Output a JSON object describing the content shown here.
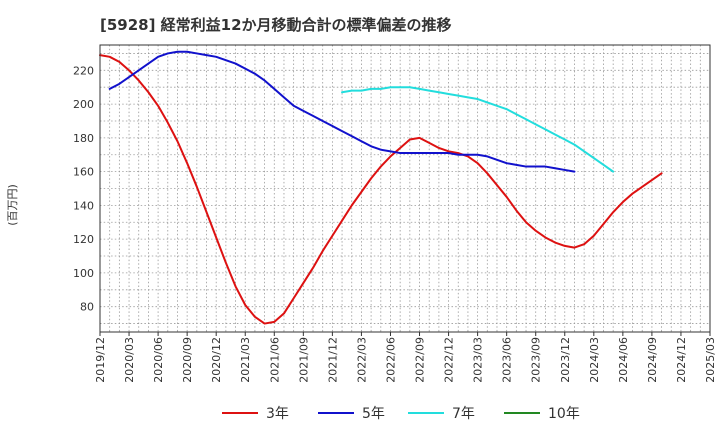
{
  "chart_data": {
    "type": "line",
    "title": "[5928]  経常利益12か月移動合計の標準偏差の推移",
    "ylabel": "(百万円)",
    "xlabel": "",
    "ylim": [
      65,
      235
    ],
    "yticks": [
      80,
      100,
      120,
      140,
      160,
      180,
      200,
      220
    ],
    "xlim": [
      "2019-12",
      "2025-03"
    ],
    "xticks": [
      "2019/12",
      "2020/03",
      "2020/06",
      "2020/09",
      "2020/12",
      "2021/03",
      "2021/06",
      "2021/09",
      "2021/12",
      "2022/03",
      "2022/06",
      "2022/09",
      "2022/12",
      "2023/03",
      "2023/06",
      "2023/09",
      "2023/12",
      "2024/03",
      "2024/06",
      "2024/09",
      "2024/12",
      "2025/03"
    ],
    "grid": true,
    "legend_position": "bottom",
    "series": [
      {
        "name": "3年",
        "color": "#dd1111",
        "points": [
          [
            "2019-12",
            229
          ],
          [
            "2020-01",
            228
          ],
          [
            "2020-02",
            225
          ],
          [
            "2020-03",
            220
          ],
          [
            "2020-04",
            214
          ],
          [
            "2020-05",
            207
          ],
          [
            "2020-06",
            199
          ],
          [
            "2020-07",
            189
          ],
          [
            "2020-08",
            178
          ],
          [
            "2020-09",
            165
          ],
          [
            "2020-10",
            151
          ],
          [
            "2020-11",
            136
          ],
          [
            "2020-12",
            121
          ],
          [
            "2021-01",
            106
          ],
          [
            "2021-02",
            92
          ],
          [
            "2021-03",
            81
          ],
          [
            "2021-04",
            74
          ],
          [
            "2021-05",
            70
          ],
          [
            "2021-06",
            71
          ],
          [
            "2021-07",
            76
          ],
          [
            "2021-08",
            85
          ],
          [
            "2021-09",
            94
          ],
          [
            "2021-10",
            103
          ],
          [
            "2021-11",
            113
          ],
          [
            "2021-12",
            122
          ],
          [
            "2022-01",
            131
          ],
          [
            "2022-02",
            140
          ],
          [
            "2022-03",
            148
          ],
          [
            "2022-04",
            156
          ],
          [
            "2022-05",
            163
          ],
          [
            "2022-06",
            169
          ],
          [
            "2022-07",
            174
          ],
          [
            "2022-08",
            179
          ],
          [
            "2022-09",
            180
          ],
          [
            "2022-10",
            177
          ],
          [
            "2022-11",
            174
          ],
          [
            "2022-12",
            172
          ],
          [
            "2023-01",
            171
          ],
          [
            "2023-02",
            169
          ],
          [
            "2023-03",
            165
          ],
          [
            "2023-04",
            159
          ],
          [
            "2023-05",
            152
          ],
          [
            "2023-06",
            145
          ],
          [
            "2023-07",
            137
          ],
          [
            "2023-08",
            130
          ],
          [
            "2023-09",
            125
          ],
          [
            "2023-10",
            121
          ],
          [
            "2023-11",
            118
          ],
          [
            "2023-12",
            116
          ],
          [
            "2024-01",
            115
          ],
          [
            "2024-02",
            117
          ],
          [
            "2024-03",
            122
          ],
          [
            "2024-04",
            129
          ],
          [
            "2024-05",
            136
          ],
          [
            "2024-06",
            142
          ],
          [
            "2024-07",
            147
          ],
          [
            "2024-08",
            151
          ],
          [
            "2024-09",
            155
          ],
          [
            "2024-10",
            159
          ]
        ]
      },
      {
        "name": "5年",
        "color": "#1111cc",
        "points": [
          [
            "2020-01",
            209
          ],
          [
            "2020-02",
            212
          ],
          [
            "2020-03",
            216
          ],
          [
            "2020-04",
            220
          ],
          [
            "2020-05",
            224
          ],
          [
            "2020-06",
            228
          ],
          [
            "2020-07",
            230
          ],
          [
            "2020-08",
            231
          ],
          [
            "2020-09",
            231
          ],
          [
            "2020-10",
            230
          ],
          [
            "2020-11",
            229
          ],
          [
            "2020-12",
            228
          ],
          [
            "2021-01",
            226
          ],
          [
            "2021-02",
            224
          ],
          [
            "2021-03",
            221
          ],
          [
            "2021-04",
            218
          ],
          [
            "2021-05",
            214
          ],
          [
            "2021-06",
            209
          ],
          [
            "2021-07",
            204
          ],
          [
            "2021-08",
            199
          ],
          [
            "2021-09",
            196
          ],
          [
            "2021-10",
            193
          ],
          [
            "2021-11",
            190
          ],
          [
            "2021-12",
            187
          ],
          [
            "2022-01",
            184
          ],
          [
            "2022-02",
            181
          ],
          [
            "2022-03",
            178
          ],
          [
            "2022-04",
            175
          ],
          [
            "2022-05",
            173
          ],
          [
            "2022-06",
            172
          ],
          [
            "2022-07",
            171
          ],
          [
            "2022-08",
            171
          ],
          [
            "2022-09",
            171
          ],
          [
            "2022-10",
            171
          ],
          [
            "2022-11",
            171
          ],
          [
            "2022-12",
            171
          ],
          [
            "2023-01",
            170
          ],
          [
            "2023-02",
            170
          ],
          [
            "2023-03",
            170
          ],
          [
            "2023-04",
            169
          ],
          [
            "2023-05",
            167
          ],
          [
            "2023-06",
            165
          ],
          [
            "2023-07",
            164
          ],
          [
            "2023-08",
            163
          ],
          [
            "2023-09",
            163
          ],
          [
            "2023-10",
            163
          ],
          [
            "2023-11",
            162
          ],
          [
            "2023-12",
            161
          ],
          [
            "2024-01",
            160
          ]
        ]
      },
      {
        "name": "7年",
        "color": "#22dddd",
        "points": [
          [
            "2022-01",
            207
          ],
          [
            "2022-02",
            208
          ],
          [
            "2022-03",
            208
          ],
          [
            "2022-04",
            209
          ],
          [
            "2022-05",
            209
          ],
          [
            "2022-06",
            210
          ],
          [
            "2022-07",
            210
          ],
          [
            "2022-08",
            210
          ],
          [
            "2022-09",
            209
          ],
          [
            "2022-10",
            208
          ],
          [
            "2022-11",
            207
          ],
          [
            "2022-12",
            206
          ],
          [
            "2023-01",
            205
          ],
          [
            "2023-02",
            204
          ],
          [
            "2023-03",
            203
          ],
          [
            "2023-04",
            201
          ],
          [
            "2023-05",
            199
          ],
          [
            "2023-06",
            197
          ],
          [
            "2023-07",
            194
          ],
          [
            "2023-08",
            191
          ],
          [
            "2023-09",
            188
          ],
          [
            "2023-10",
            185
          ],
          [
            "2023-11",
            182
          ],
          [
            "2023-12",
            179
          ],
          [
            "2024-01",
            176
          ],
          [
            "2024-02",
            172
          ],
          [
            "2024-03",
            168
          ],
          [
            "2024-04",
            164
          ],
          [
            "2024-05",
            160
          ]
        ]
      },
      {
        "name": "10年",
        "color": "#228822",
        "points": []
      }
    ]
  }
}
